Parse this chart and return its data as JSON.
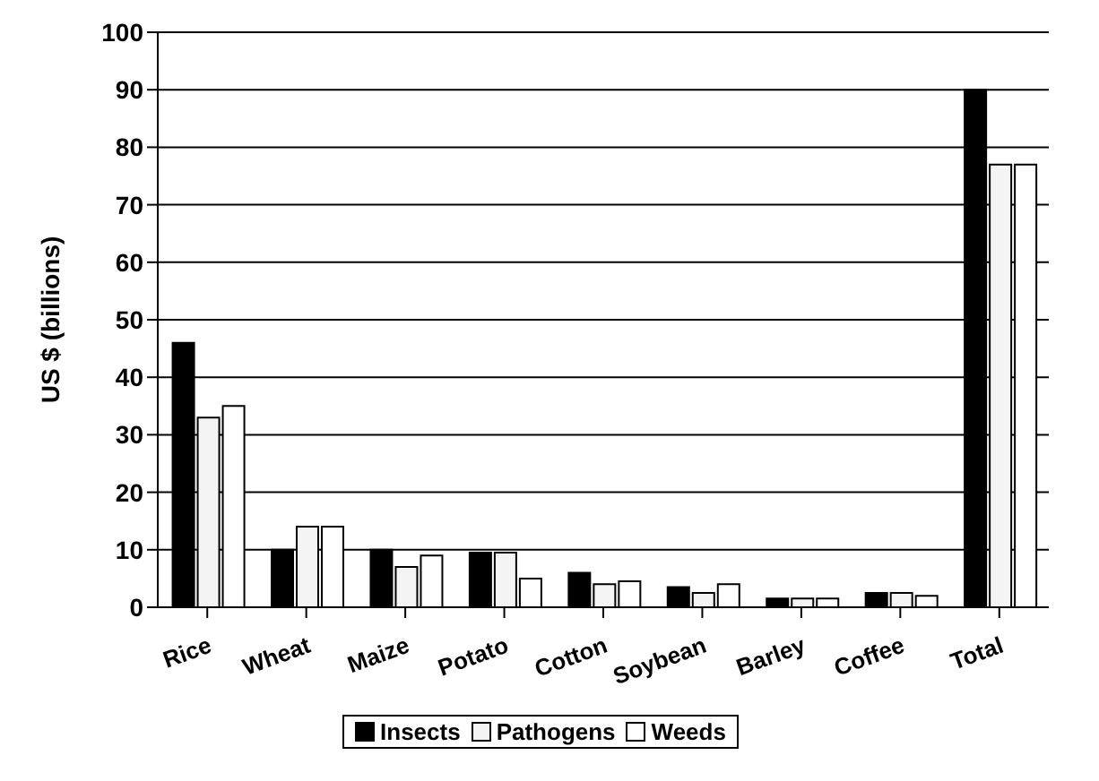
{
  "chart_data": {
    "type": "bar",
    "ylabel": "US $ (billions)",
    "categories": [
      "Rice",
      "Wheat",
      "Maize",
      "Potato",
      "Cotton",
      "Soybean",
      "Barley",
      "Coffee",
      "Total"
    ],
    "series": [
      {
        "name": "Insects",
        "color": "#000000",
        "values": [
          46,
          10,
          10,
          9.5,
          6,
          3.5,
          1.5,
          2.5,
          90
        ]
      },
      {
        "name": "Pathogens",
        "color": "#f4f4f4",
        "values": [
          33,
          14,
          7,
          9.5,
          4,
          2.5,
          1.5,
          2.5,
          77
        ]
      },
      {
        "name": "Weeds",
        "color": "#ffffff",
        "values": [
          35,
          14,
          9,
          5,
          4.5,
          4,
          1.5,
          2,
          77
        ]
      }
    ],
    "ylim": [
      0,
      100
    ],
    "yticks": [
      0,
      10,
      20,
      30,
      40,
      50,
      60,
      70,
      80,
      90,
      100
    ],
    "grid": "y",
    "legend": "bottom"
  }
}
